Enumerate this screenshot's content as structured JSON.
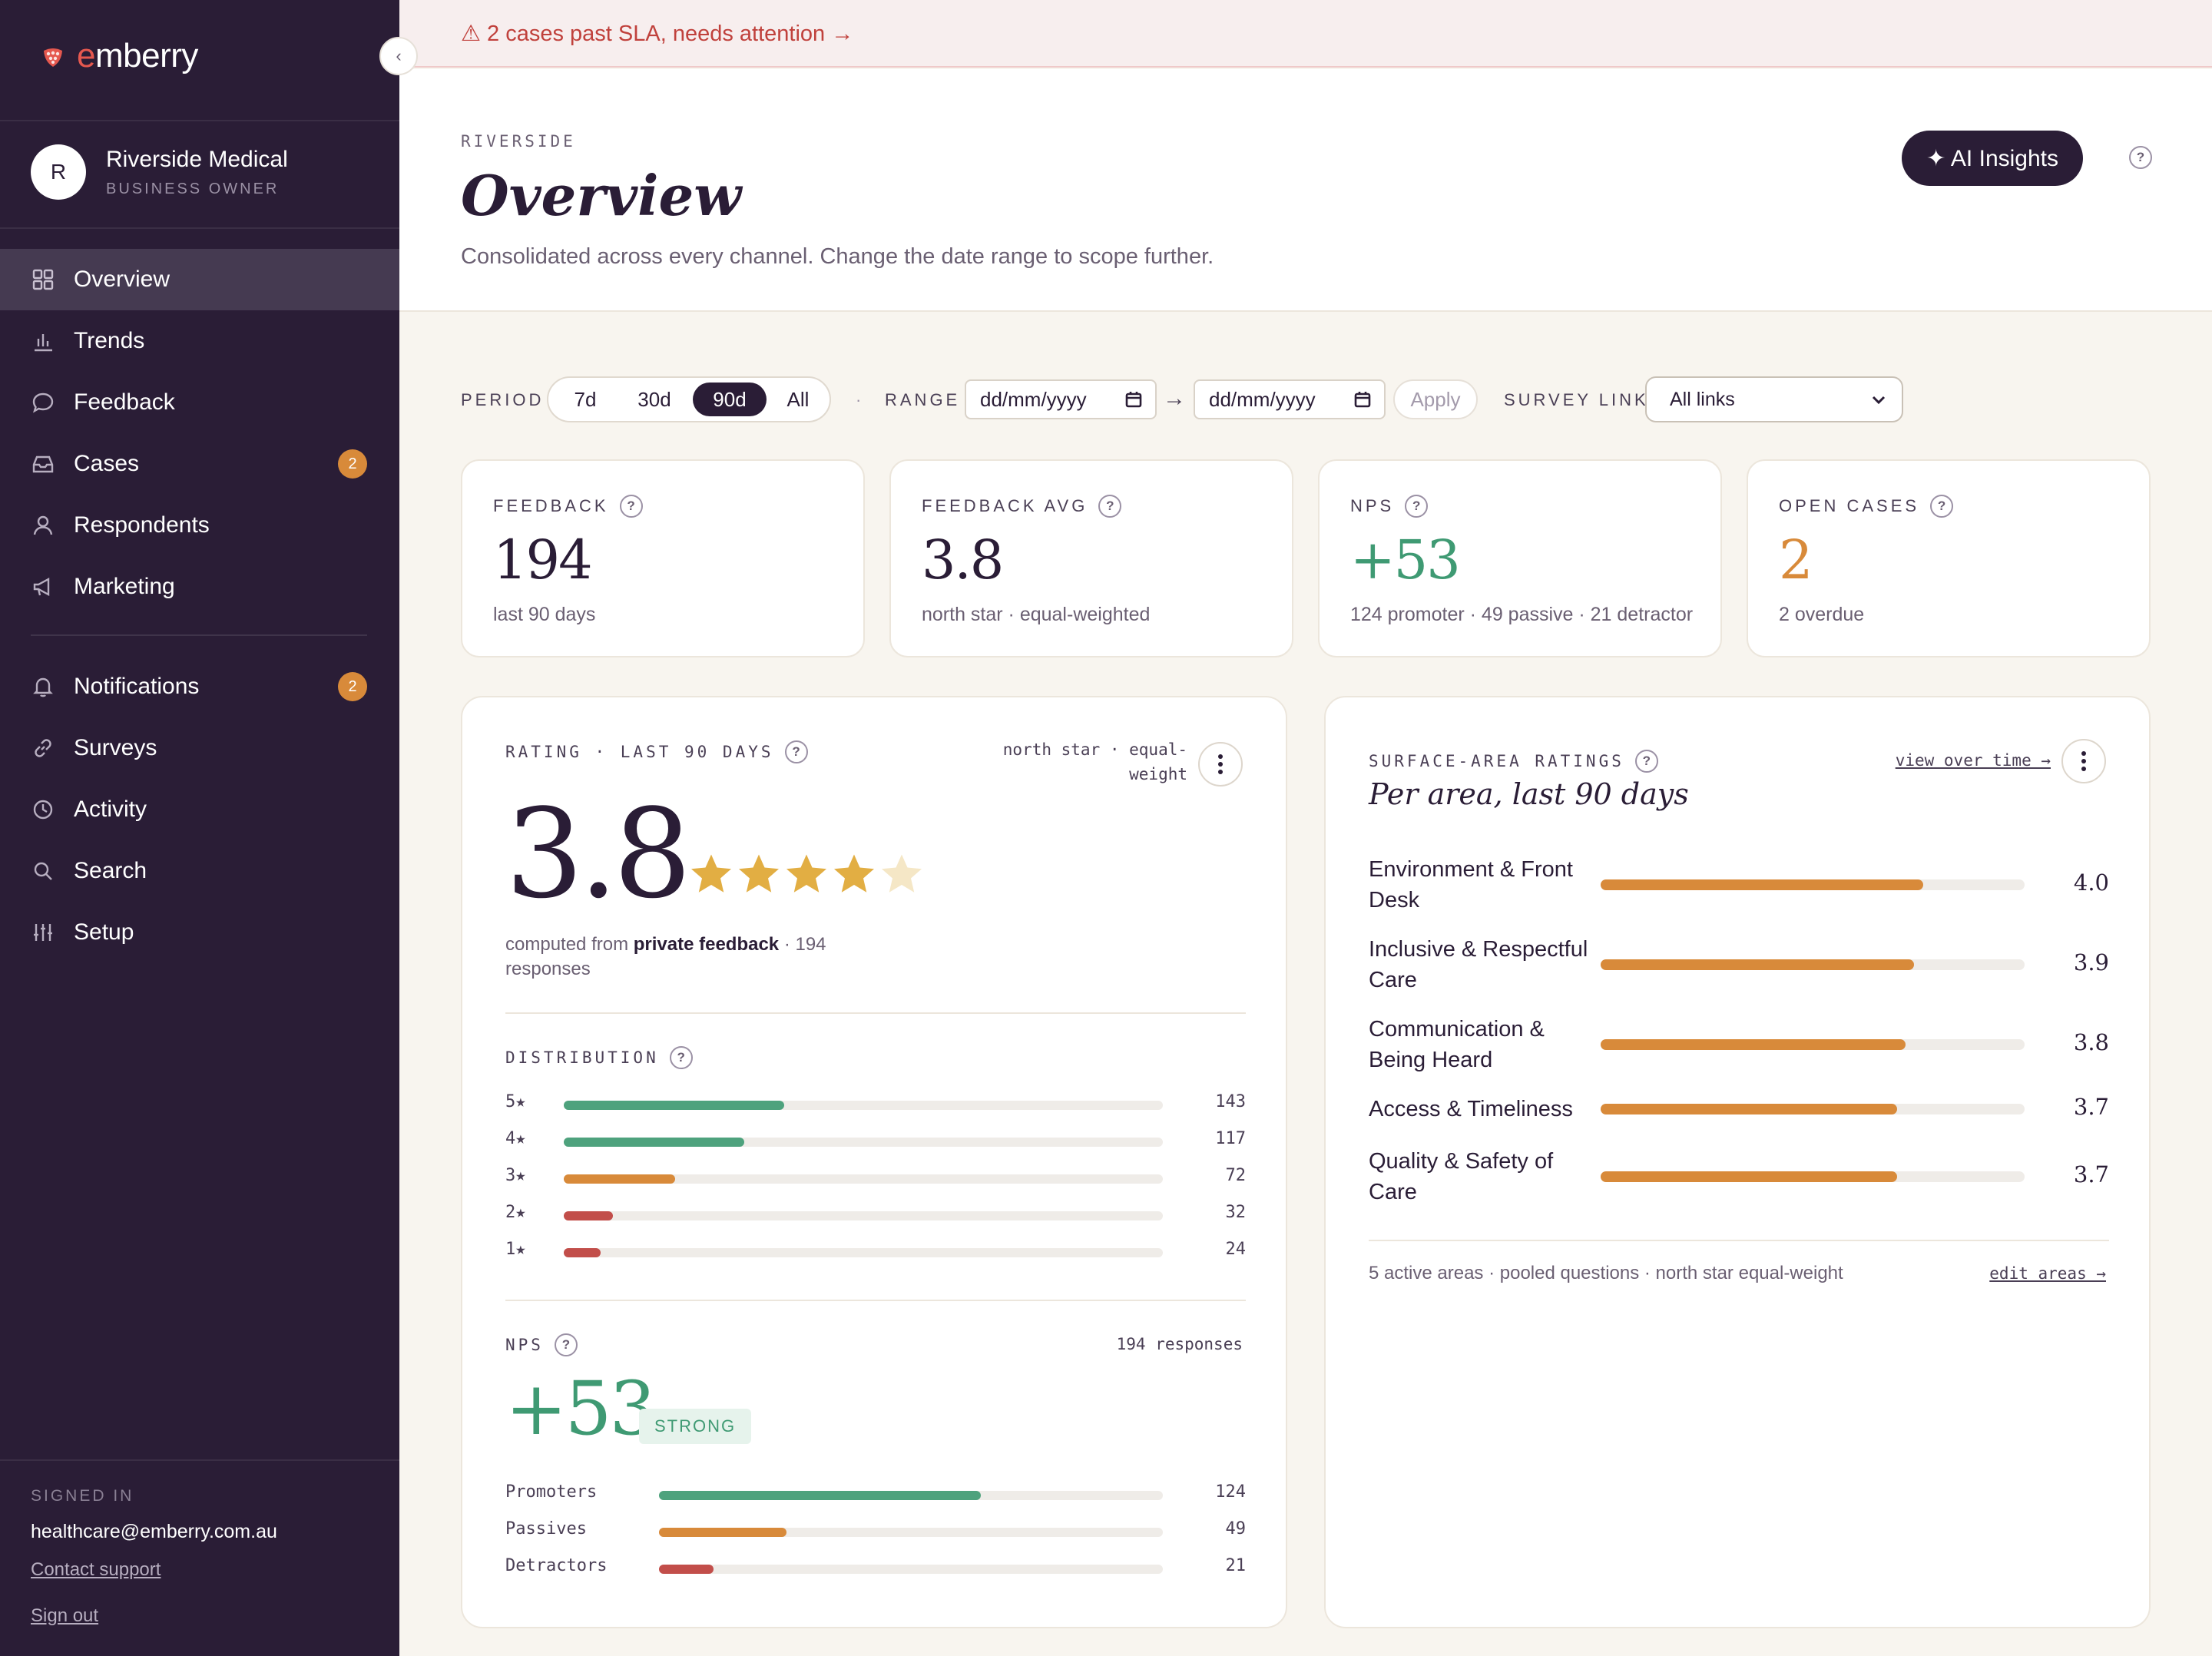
{
  "brand": {
    "name_accent": "e",
    "name_rest": "mberry"
  },
  "account": {
    "initial": "R",
    "name": "Riverside Medical",
    "role": "BUSINESS OWNER"
  },
  "nav": {
    "overview": "Overview",
    "trends": "Trends",
    "feedback": "Feedback",
    "cases": "Cases",
    "cases_badge": "2",
    "respondents": "Respondents",
    "marketing": "Marketing",
    "notifications": "Notifications",
    "notifications_badge": "2",
    "surveys": "Surveys",
    "activity": "Activity",
    "search": "Search",
    "setup": "Setup"
  },
  "footer": {
    "signed_in_label": "SIGNED IN",
    "email": "healthcare@emberry.com.au",
    "contact": "Contact support",
    "signout": "Sign out"
  },
  "alert": {
    "text": "⚠ 2 cases past SLA, needs attention →"
  },
  "header": {
    "eyebrow": "RIVERSIDE",
    "title": "Overview",
    "subtitle": "Consolidated across every channel. Change the date range to scope further.",
    "ai_button": "✦ AI Insights"
  },
  "filters": {
    "period_label": "PERIOD",
    "periods": [
      "7d",
      "30d",
      "90d",
      "All"
    ],
    "selected_period": "90d",
    "range_label": "RANGE",
    "date_placeholder": "dd/mm/yyyy",
    "arrow": "→",
    "apply": "Apply",
    "survey_link_label": "SURVEY LINK",
    "survey_link_value": "All links"
  },
  "kpis": [
    {
      "label": "FEEDBACK",
      "value": "194",
      "sub": "last 90 days",
      "color": "#2a1d36"
    },
    {
      "label": "FEEDBACK AVG",
      "value": "3.8",
      "sub": "north star · equal-weighted",
      "color": "#2a1d36"
    },
    {
      "label": "NPS",
      "value": "+53",
      "sub": "124 promoter · 49 passive · 21 detractor",
      "color": "#3f9a73"
    },
    {
      "label": "OPEN CASES",
      "value": "2",
      "sub": "2 overdue",
      "color": "#d88a3a"
    }
  ],
  "rating": {
    "label": "RATING · LAST 90 DAYS",
    "note_line1": "north star · equal-",
    "note_line2": "weight",
    "value": "3.8",
    "stars": 3.8,
    "computed_prefix": "computed from ",
    "computed_bold": "private feedback",
    "computed_suffix": " · 194 responses",
    "distribution_label": "DISTRIBUTION",
    "distribution": [
      {
        "label": "5★",
        "count": 143,
        "color": "#4ea27d"
      },
      {
        "label": "4★",
        "count": 117,
        "color": "#4ea27d"
      },
      {
        "label": "3★",
        "count": 72,
        "color": "#d88a3a"
      },
      {
        "label": "2★",
        "count": 32,
        "color": "#c24e4a"
      },
      {
        "label": "1★",
        "count": 24,
        "color": "#c24e4a"
      }
    ],
    "distribution_max": 388,
    "nps_label": "NPS",
    "nps_responses": "194 responses",
    "nps_value": "+53",
    "nps_badge": "STRONG",
    "nps_breakdown": [
      {
        "label": "Promoters",
        "count": 124,
        "color": "#4ea27d"
      },
      {
        "label": "Passives",
        "count": 49,
        "color": "#d88a3a"
      },
      {
        "label": "Detractors",
        "count": 21,
        "color": "#c24e4a"
      }
    ],
    "nps_max": 194
  },
  "areas": {
    "label": "SURFACE-AREA RATINGS",
    "view_link": "view over time →",
    "title": "Per area, last 90 days",
    "items": [
      {
        "label": "Environment & Front Desk",
        "value": "4.0",
        "score": 4.0
      },
      {
        "label": "Inclusive & Respectful Care",
        "value": "3.9",
        "score": 3.9
      },
      {
        "label": "Communication & Being Heard",
        "value": "3.8",
        "score": 3.8
      },
      {
        "label": "Access & Timeliness",
        "value": "3.7",
        "score": 3.7
      },
      {
        "label": "Quality & Safety of Care",
        "value": "3.7",
        "score": 3.7
      }
    ],
    "scale_max": 5,
    "footnote": "5 active areas · pooled questions · north star equal-weight",
    "edit_link": "edit areas →"
  },
  "colors": {
    "sidebar": "#2a1d36",
    "accent_orange": "#d88a3a",
    "accent_green": "#3f9a73",
    "alert_red": "#c0413c",
    "star": "#e2ae43"
  }
}
